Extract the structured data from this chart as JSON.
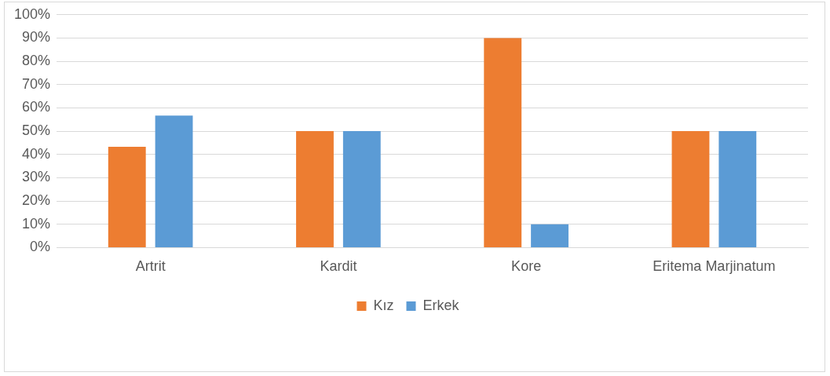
{
  "chart_data": {
    "type": "bar",
    "categories": [
      "Artrit",
      "Kardit",
      "Kore",
      "Eritema Marjinatum"
    ],
    "series": [
      {
        "name": "Kız",
        "color": "#ed7d31",
        "values": [
          43.3,
          50,
          90,
          50
        ]
      },
      {
        "name": "Erkek",
        "color": "#5b9bd5",
        "values": [
          56.7,
          50,
          10,
          50
        ]
      }
    ],
    "ylim": [
      0,
      100
    ],
    "yticks": [
      {
        "value": 0,
        "label": "0%"
      },
      {
        "value": 10,
        "label": "10%"
      },
      {
        "value": 20,
        "label": "20%"
      },
      {
        "value": 30,
        "label": "30%"
      },
      {
        "value": 40,
        "label": "40%"
      },
      {
        "value": 50,
        "label": "50%"
      },
      {
        "value": 60,
        "label": "60%"
      },
      {
        "value": 70,
        "label": "70%"
      },
      {
        "value": 80,
        "label": "80%"
      },
      {
        "value": 90,
        "label": "90%"
      },
      {
        "value": 100,
        "label": "100%"
      }
    ],
    "grid": "y",
    "legend": "bottom"
  }
}
